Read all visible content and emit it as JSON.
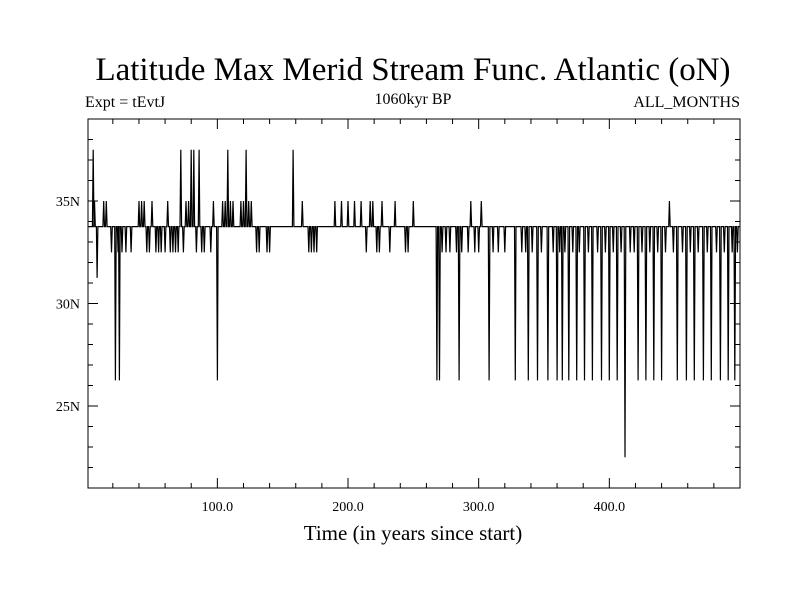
{
  "chart_data": {
    "type": "line",
    "title": "Latitude Max Merid Stream Func. Atlantic (oN)",
    "left_label": "Expt = tEvtJ",
    "center_label": "1060kyr BP",
    "right_label": "ALL_MONTHS",
    "xlabel": "Time (in years since start)",
    "ylabel": "",
    "xlim": [
      1,
      500
    ],
    "ylim": [
      21,
      39
    ],
    "x_ticks": [
      {
        "value": 100,
        "label": "100.0"
      },
      {
        "value": 200,
        "label": "200.0"
      },
      {
        "value": 300,
        "label": "300.0"
      },
      {
        "value": 400,
        "label": "400.0"
      }
    ],
    "y_ticks": [
      {
        "value": 25,
        "label": "25N"
      },
      {
        "value": 30,
        "label": "30N"
      },
      {
        "value": 35,
        "label": "35N"
      }
    ],
    "baseline": 33.75,
    "levels": [
      22.5,
      26.25,
      28.75,
      31.25,
      32.5,
      33.75,
      35.0,
      37.5
    ],
    "events": [
      [
        5,
        37.5
      ],
      [
        6,
        35
      ],
      [
        8,
        31.25
      ],
      [
        13,
        35
      ],
      [
        15,
        35
      ],
      [
        19,
        32.5
      ],
      [
        22,
        26.25
      ],
      [
        24,
        32.5
      ],
      [
        25,
        26.25
      ],
      [
        27,
        32.5
      ],
      [
        30,
        32.5
      ],
      [
        34,
        32.5
      ],
      [
        40,
        35
      ],
      [
        42,
        35
      ],
      [
        44,
        35
      ],
      [
        46,
        32.5
      ],
      [
        48,
        32.5
      ],
      [
        50,
        35
      ],
      [
        53,
        32.5
      ],
      [
        55,
        32.5
      ],
      [
        57,
        32.5
      ],
      [
        60,
        32.5
      ],
      [
        62,
        35
      ],
      [
        64,
        32.5
      ],
      [
        66,
        32.5
      ],
      [
        68,
        32.5
      ],
      [
        70,
        32.5
      ],
      [
        72,
        37.5
      ],
      [
        74,
        32.5
      ],
      [
        76,
        35
      ],
      [
        78,
        35
      ],
      [
        80,
        37.5
      ],
      [
        82,
        37.5
      ],
      [
        84,
        32.5
      ],
      [
        86,
        37.5
      ],
      [
        88,
        32.5
      ],
      [
        90,
        32.5
      ],
      [
        95,
        32.5
      ],
      [
        97,
        35
      ],
      [
        100,
        26.25
      ],
      [
        104,
        35
      ],
      [
        106,
        35
      ],
      [
        108,
        37.5
      ],
      [
        110,
        35
      ],
      [
        112,
        35
      ],
      [
        118,
        35
      ],
      [
        120,
        35
      ],
      [
        122,
        37.5
      ],
      [
        124,
        35
      ],
      [
        126,
        35
      ],
      [
        130,
        32.5
      ],
      [
        132,
        32.5
      ],
      [
        138,
        32.5
      ],
      [
        140,
        32.5
      ],
      [
        158,
        37.5
      ],
      [
        165,
        35
      ],
      [
        170,
        32.5
      ],
      [
        172,
        32.5
      ],
      [
        174,
        32.5
      ],
      [
        176,
        32.5
      ],
      [
        190,
        35
      ],
      [
        195,
        35
      ],
      [
        200,
        35
      ],
      [
        205,
        35
      ],
      [
        210,
        35
      ],
      [
        214,
        32.5
      ],
      [
        217,
        35
      ],
      [
        219,
        35
      ],
      [
        222,
        32.5
      ],
      [
        224,
        32.5
      ],
      [
        226,
        35
      ],
      [
        232,
        32.5
      ],
      [
        236,
        35
      ],
      [
        244,
        32.5
      ],
      [
        246,
        32.5
      ],
      [
        250,
        35
      ],
      [
        268,
        26.25
      ],
      [
        270,
        26.25
      ],
      [
        272,
        32.5
      ],
      [
        275,
        32.5
      ],
      [
        278,
        32.5
      ],
      [
        283,
        32.5
      ],
      [
        285,
        26.25
      ],
      [
        287,
        32.5
      ],
      [
        292,
        32.5
      ],
      [
        294,
        35
      ],
      [
        297,
        32.5
      ],
      [
        300,
        32.5
      ],
      [
        302,
        35
      ],
      [
        308,
        26.25
      ],
      [
        311,
        32.5
      ],
      [
        315,
        32.5
      ],
      [
        320,
        32.5
      ],
      [
        328,
        26.25
      ],
      [
        333,
        32.5
      ],
      [
        336,
        32.5
      ],
      [
        338,
        26.25
      ],
      [
        341,
        32.5
      ],
      [
        345,
        26.25
      ],
      [
        348,
        32.5
      ],
      [
        353,
        26.25
      ],
      [
        357,
        32.5
      ],
      [
        360,
        26.25
      ],
      [
        362,
        32.5
      ],
      [
        364,
        26.25
      ],
      [
        366,
        32.5
      ],
      [
        369,
        26.25
      ],
      [
        372,
        32.5
      ],
      [
        375,
        26.25
      ],
      [
        377,
        32.5
      ],
      [
        381,
        26.25
      ],
      [
        384,
        32.5
      ],
      [
        387,
        26.25
      ],
      [
        391,
        32.5
      ],
      [
        394,
        26.25
      ],
      [
        397,
        32.5
      ],
      [
        400,
        26.25
      ],
      [
        403,
        32.5
      ],
      [
        406,
        26.25
      ],
      [
        409,
        32.5
      ],
      [
        412,
        22.5
      ],
      [
        416,
        32.5
      ],
      [
        419,
        32.5
      ],
      [
        422,
        26.25
      ],
      [
        425,
        32.5
      ],
      [
        428,
        26.25
      ],
      [
        431,
        32.5
      ],
      [
        434,
        26.25
      ],
      [
        437,
        32.5
      ],
      [
        440,
        26.25
      ],
      [
        443,
        32.5
      ],
      [
        446,
        35
      ],
      [
        449,
        32.5
      ],
      [
        452,
        26.25
      ],
      [
        456,
        32.5
      ],
      [
        459,
        26.25
      ],
      [
        462,
        32.5
      ],
      [
        465,
        26.25
      ],
      [
        468,
        32.5
      ],
      [
        472,
        26.25
      ],
      [
        475,
        32.5
      ],
      [
        478,
        26.25
      ],
      [
        482,
        32.5
      ],
      [
        485,
        26.25
      ],
      [
        488,
        32.5
      ],
      [
        491,
        26.25
      ],
      [
        494,
        32.5
      ],
      [
        496,
        26.25
      ],
      [
        498,
        32.5
      ]
    ],
    "grid": false,
    "series": [
      {
        "name": "tEvtJ",
        "color": "#000000"
      }
    ]
  }
}
